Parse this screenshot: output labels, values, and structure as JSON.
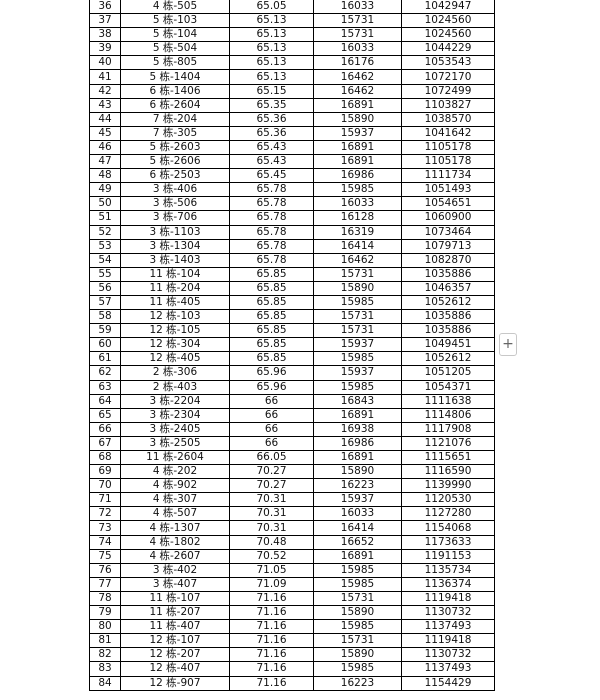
{
  "table": {
    "rows": [
      [
        "36",
        "4 栋-505",
        "65.05",
        "16033",
        "1042947"
      ],
      [
        "37",
        "5 栋-103",
        "65.13",
        "15731",
        "1024560"
      ],
      [
        "38",
        "5 栋-104",
        "65.13",
        "15731",
        "1024560"
      ],
      [
        "39",
        "5 栋-504",
        "65.13",
        "16033",
        "1044229"
      ],
      [
        "40",
        "5 栋-805",
        "65.13",
        "16176",
        "1053543"
      ],
      [
        "41",
        "5 栋-1404",
        "65.13",
        "16462",
        "1072170"
      ],
      [
        "42",
        "6 栋-1406",
        "65.15",
        "16462",
        "1072499"
      ],
      [
        "43",
        "6 栋-2604",
        "65.35",
        "16891",
        "1103827"
      ],
      [
        "44",
        "7 栋-204",
        "65.36",
        "15890",
        "1038570"
      ],
      [
        "45",
        "7 栋-305",
        "65.36",
        "15937",
        "1041642"
      ],
      [
        "46",
        "5 栋-2603",
        "65.43",
        "16891",
        "1105178"
      ],
      [
        "47",
        "5 栋-2606",
        "65.43",
        "16891",
        "1105178"
      ],
      [
        "48",
        "6 栋-2503",
        "65.45",
        "16986",
        "1111734"
      ],
      [
        "49",
        "3 栋-406",
        "65.78",
        "15985",
        "1051493"
      ],
      [
        "50",
        "3 栋-506",
        "65.78",
        "16033",
        "1054651"
      ],
      [
        "51",
        "3 栋-706",
        "65.78",
        "16128",
        "1060900"
      ],
      [
        "52",
        "3 栋-1103",
        "65.78",
        "16319",
        "1073464"
      ],
      [
        "53",
        "3 栋-1304",
        "65.78",
        "16414",
        "1079713"
      ],
      [
        "54",
        "3 栋-1403",
        "65.78",
        "16462",
        "1082870"
      ],
      [
        "55",
        "11 栋-104",
        "65.85",
        "15731",
        "1035886"
      ],
      [
        "56",
        "11 栋-204",
        "65.85",
        "15890",
        "1046357"
      ],
      [
        "57",
        "11 栋-405",
        "65.85",
        "15985",
        "1052612"
      ],
      [
        "58",
        "12 栋-103",
        "65.85",
        "15731",
        "1035886"
      ],
      [
        "59",
        "12 栋-105",
        "65.85",
        "15731",
        "1035886"
      ],
      [
        "60",
        "12 栋-304",
        "65.85",
        "15937",
        "1049451"
      ],
      [
        "61",
        "12 栋-405",
        "65.85",
        "15985",
        "1052612"
      ],
      [
        "62",
        "2 栋-306",
        "65.96",
        "15937",
        "1051205"
      ],
      [
        "63",
        "2 栋-403",
        "65.96",
        "15985",
        "1054371"
      ],
      [
        "64",
        "3 栋-2204",
        "66",
        "16843",
        "1111638"
      ],
      [
        "65",
        "3 栋-2304",
        "66",
        "16891",
        "1114806"
      ],
      [
        "66",
        "3 栋-2405",
        "66",
        "16938",
        "1117908"
      ],
      [
        "67",
        "3 栋-2505",
        "66",
        "16986",
        "1121076"
      ],
      [
        "68",
        "11 栋-2604",
        "66.05",
        "16891",
        "1115651"
      ],
      [
        "69",
        "4 栋-202",
        "70.27",
        "15890",
        "1116590"
      ],
      [
        "70",
        "4 栋-902",
        "70.27",
        "16223",
        "1139990"
      ],
      [
        "71",
        "4 栋-307",
        "70.31",
        "15937",
        "1120530"
      ],
      [
        "72",
        "4 栋-507",
        "70.31",
        "16033",
        "1127280"
      ],
      [
        "73",
        "4 栋-1307",
        "70.31",
        "16414",
        "1154068"
      ],
      [
        "74",
        "4 栋-1802",
        "70.48",
        "16652",
        "1173633"
      ],
      [
        "75",
        "4 栋-2607",
        "70.52",
        "16891",
        "1191153"
      ],
      [
        "76",
        "3 栋-402",
        "71.05",
        "15985",
        "1135734"
      ],
      [
        "77",
        "3 栋-407",
        "71.09",
        "15985",
        "1136374"
      ],
      [
        "78",
        "11 栋-107",
        "71.16",
        "15731",
        "1119418"
      ],
      [
        "79",
        "11 栋-207",
        "71.16",
        "15890",
        "1130732"
      ],
      [
        "80",
        "11 栋-407",
        "71.16",
        "15985",
        "1137493"
      ],
      [
        "81",
        "12 栋-107",
        "71.16",
        "15731",
        "1119418"
      ],
      [
        "82",
        "12 栋-207",
        "71.16",
        "15890",
        "1130732"
      ],
      [
        "83",
        "12 栋-407",
        "71.16",
        "15985",
        "1137493"
      ],
      [
        "84",
        "12 栋-907",
        "71.16",
        "16223",
        "1154429"
      ]
    ]
  },
  "add_button": {
    "label": "+",
    "icon": "plus-icon"
  }
}
